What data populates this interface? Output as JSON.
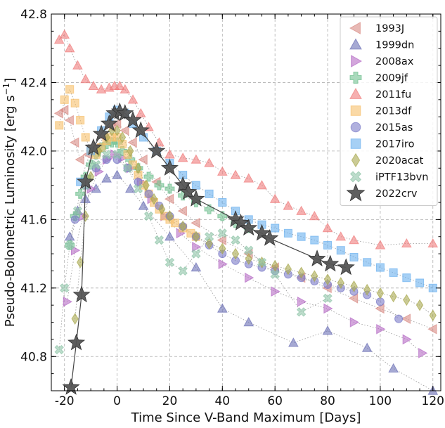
{
  "chart_data": {
    "type": "scatter",
    "title": "",
    "xlabel": "Time Since V-Band Maximum [Days]",
    "ylabel": "Pseudo-Bolometric Luminosity [erg s",
    "ylabel_unit_sup": "−1",
    "ylabel_close": "]",
    "xlim": [
      -25,
      123
    ],
    "ylim": [
      40.6,
      42.8
    ],
    "x_ticks": [
      -20,
      0,
      20,
      40,
      60,
      80,
      100,
      120
    ],
    "y_ticks": [
      40.8,
      41.2,
      41.6,
      42.0,
      42.4,
      42.8
    ],
    "grid": true,
    "legend_position": "top-right",
    "series": [
      {
        "name": "1993J",
        "marker": "triangle-left",
        "color": "#d98b84",
        "alpha": 0.6,
        "x": [
          -22,
          -20,
          -18,
          -16,
          -14,
          -11,
          -8,
          -5,
          -2,
          0,
          3,
          6,
          10,
          15,
          20,
          25,
          30,
          40,
          50,
          60,
          70,
          80,
          90,
          100,
          110,
          120
        ],
        "y": [
          42.22,
          42.24,
          42.18,
          42.05,
          41.95,
          41.98,
          42.02,
          42.08,
          42.14,
          42.16,
          42.12,
          42.05,
          41.95,
          41.82,
          41.72,
          41.65,
          41.58,
          41.48,
          41.4,
          41.32,
          41.26,
          41.2,
          41.14,
          41.08,
          41.02,
          40.96
        ]
      },
      {
        "name": "1999dn",
        "marker": "triangle-up",
        "color": "#6b6fb5",
        "alpha": 0.6,
        "x": [
          -18,
          -15,
          -12,
          -8,
          -4,
          0,
          5,
          10,
          20,
          30,
          40,
          50,
          67,
          80,
          95,
          105,
          120
        ],
        "y": [
          41.5,
          41.65,
          41.72,
          41.78,
          41.84,
          41.86,
          41.78,
          41.68,
          41.5,
          41.32,
          41.08,
          41.0,
          40.88,
          40.95,
          40.85,
          40.73,
          40.6
        ]
      },
      {
        "name": "2008ax",
        "marker": "triangle-right",
        "color": "#b56bc4",
        "alpha": 0.6,
        "x": [
          -19,
          -16,
          -13,
          -10,
          -7,
          -4,
          -1,
          2,
          5,
          9,
          13,
          18,
          24,
          30,
          40,
          50,
          60,
          70,
          80,
          90,
          100,
          110,
          116
        ],
        "y": [
          41.12,
          41.42,
          41.62,
          41.78,
          41.88,
          41.95,
          41.98,
          41.96,
          41.9,
          41.82,
          41.72,
          41.62,
          41.52,
          41.44,
          41.34,
          41.26,
          41.18,
          41.12,
          41.08,
          41.0,
          40.96,
          40.9,
          40.82
        ]
      },
      {
        "name": "2009jf",
        "marker": "plus",
        "color": "#6fbf8f",
        "alpha": 0.6,
        "x": [
          -18,
          -16,
          -14,
          -12,
          -10,
          -8,
          -6,
          -4,
          -2,
          0,
          2,
          5,
          8,
          12,
          16,
          20,
          25,
          30,
          35,
          40,
          45,
          50
        ],
        "y": [
          41.45,
          41.62,
          41.75,
          41.85,
          41.92,
          41.98,
          42.02,
          42.04,
          42.05,
          42.05,
          42.0,
          41.95,
          41.9,
          41.85,
          41.8,
          41.78,
          41.74,
          41.7,
          41.66,
          41.62,
          41.58,
          41.55
        ]
      },
      {
        "name": "2011fu",
        "marker": "triangle-up",
        "color": "#f07c7c",
        "alpha": 0.6,
        "x": [
          -22,
          -20,
          -18,
          -15,
          -12,
          -9,
          -6,
          -3,
          -1,
          1,
          3,
          6,
          9,
          12,
          16,
          20,
          25,
          30,
          35,
          40,
          45,
          50,
          55,
          60,
          65,
          70,
          75,
          80,
          85,
          90,
          100,
          110,
          120
        ],
        "y": [
          42.65,
          42.68,
          42.6,
          42.5,
          42.42,
          42.38,
          42.36,
          42.37,
          42.38,
          42.38,
          42.36,
          42.3,
          42.22,
          42.14,
          42.05,
          41.98,
          41.96,
          41.95,
          41.93,
          41.88,
          41.86,
          41.84,
          41.8,
          41.72,
          41.68,
          41.65,
          41.62,
          41.55,
          41.5,
          41.48,
          41.45,
          41.46,
          41.46
        ]
      },
      {
        "name": "2013df",
        "marker": "square",
        "color": "#f7c06b",
        "alpha": 0.6,
        "x": [
          -22,
          -20,
          -18,
          -16,
          -14,
          -12,
          -10,
          -8,
          -6,
          -4,
          -2,
          0,
          2,
          4,
          6,
          8,
          10,
          12,
          14,
          16,
          18,
          20,
          22,
          25,
          28,
          30
        ],
        "y": [
          42.15,
          42.3,
          42.36,
          42.28,
          42.18,
          42.08,
          42.0,
          41.98,
          42.02,
          42.06,
          42.08,
          42.08,
          42.04,
          41.98,
          41.92,
          41.86,
          41.8,
          41.75,
          41.7,
          41.66,
          41.62,
          41.6,
          41.58,
          41.55,
          41.52,
          41.5
        ]
      },
      {
        "name": "2015as",
        "marker": "circle",
        "color": "#7b7bc8",
        "alpha": 0.6,
        "x": [
          -16,
          -12,
          -8,
          -4,
          0,
          4,
          8,
          12,
          16,
          20,
          25,
          30,
          35,
          40,
          45,
          50,
          55,
          60,
          65,
          70,
          75,
          80,
          85,
          90,
          95,
          100,
          107
        ],
        "y": [
          41.6,
          41.8,
          41.9,
          41.95,
          41.95,
          41.9,
          41.82,
          41.75,
          41.68,
          41.62,
          41.56,
          41.5,
          41.45,
          41.4,
          41.36,
          41.34,
          41.32,
          41.3,
          41.28,
          41.26,
          41.24,
          41.22,
          41.2,
          41.18,
          41.16,
          41.12,
          41.02
        ]
      },
      {
        "name": "2017iro",
        "marker": "square",
        "color": "#6bb0ef",
        "alpha": 0.6,
        "x": [
          -14,
          -10,
          -6,
          -3,
          0,
          3,
          6,
          10,
          15,
          20,
          25,
          30,
          35,
          40,
          45,
          50,
          55,
          60,
          65,
          70,
          75,
          80,
          85,
          90,
          95,
          100,
          105,
          110,
          115,
          120
        ],
        "y": [
          41.82,
          42.0,
          42.12,
          42.2,
          42.24,
          42.22,
          42.16,
          42.08,
          42.0,
          41.93,
          41.86,
          41.8,
          41.75,
          41.7,
          41.65,
          41.6,
          41.57,
          41.55,
          41.52,
          41.5,
          41.48,
          41.45,
          41.42,
          41.38,
          41.35,
          41.32,
          41.29,
          41.26,
          41.23,
          41.2
        ]
      },
      {
        "name": "2020acat",
        "marker": "diamond",
        "color": "#a8a84f",
        "alpha": 0.6,
        "x": [
          -16,
          -14,
          -12,
          -10,
          -7,
          -4,
          -2,
          0,
          2,
          5,
          8,
          11,
          14,
          17,
          20,
          25,
          30,
          35,
          40,
          45,
          50,
          55,
          60,
          65,
          70,
          75,
          80,
          85,
          90,
          95,
          100,
          105,
          110,
          115,
          120
        ],
        "y": [
          41.02,
          41.35,
          41.62,
          41.85,
          42.0,
          42.08,
          42.12,
          42.12,
          42.08,
          42.0,
          41.9,
          41.8,
          41.72,
          41.66,
          41.62,
          41.56,
          41.5,
          41.46,
          41.43,
          41.4,
          41.37,
          41.35,
          41.33,
          41.31,
          41.29,
          41.27,
          41.25,
          41.23,
          41.21,
          41.19,
          41.17,
          41.15,
          41.13,
          41.1,
          41.04
        ]
      },
      {
        "name": "iPTF13bvn",
        "marker": "x",
        "color": "#8fc4a8",
        "alpha": 0.6,
        "x": [
          -22,
          -20,
          -18,
          -15,
          -12,
          -8,
          -4,
          0,
          4,
          8,
          12,
          16,
          20,
          25,
          30,
          35,
          40,
          45,
          50,
          55,
          60,
          70,
          80
        ],
        "y": [
          40.84,
          41.2,
          41.45,
          41.65,
          41.8,
          41.92,
          41.98,
          41.98,
          41.9,
          41.78,
          41.62,
          41.48,
          41.35,
          41.3,
          41.4,
          41.5,
          41.52,
          41.48,
          41.42,
          41.35,
          41.28,
          41.06,
          41.14
        ]
      },
      {
        "name": "2022crv",
        "marker": "star",
        "color": "#555555",
        "alpha": 0.95,
        "x": [
          -17.5,
          -15.5,
          -13.5,
          -12,
          -9,
          -6,
          -3,
          -1,
          1,
          3,
          6,
          9,
          15,
          20,
          25,
          27,
          30,
          45,
          47,
          50,
          55,
          58,
          76,
          81,
          87
        ],
        "y": [
          40.62,
          40.88,
          41.16,
          41.82,
          42.02,
          42.1,
          42.16,
          42.22,
          42.23,
          42.22,
          42.18,
          42.12,
          42.0,
          41.9,
          41.8,
          41.76,
          41.72,
          41.6,
          41.58,
          41.55,
          41.52,
          41.49,
          41.37,
          41.34,
          41.32
        ]
      }
    ]
  }
}
